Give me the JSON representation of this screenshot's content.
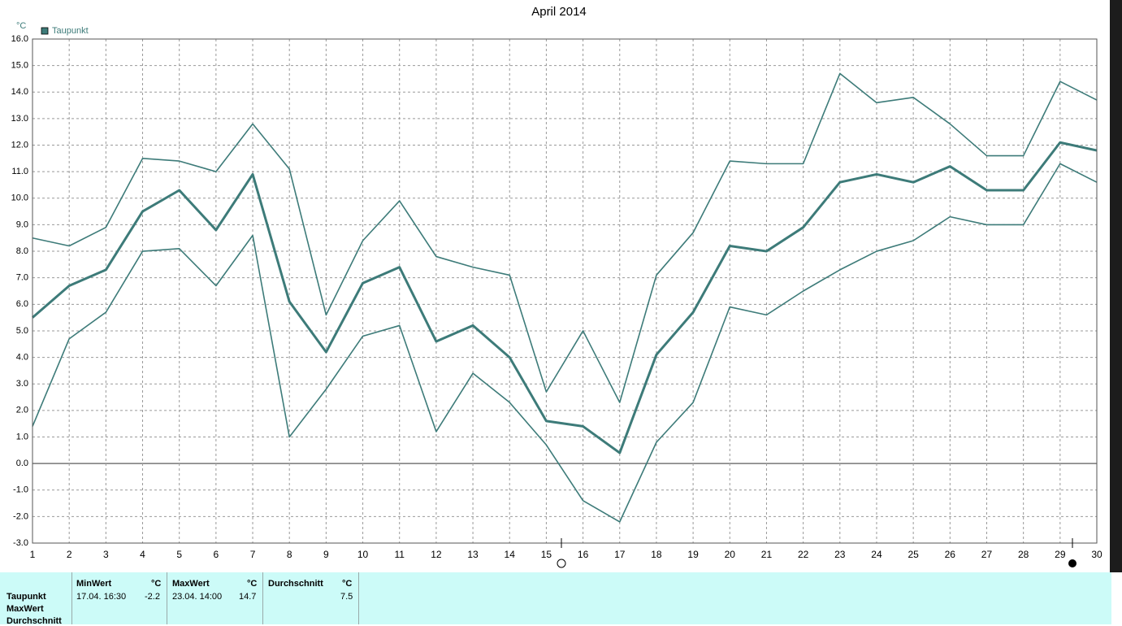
{
  "chart_data": {
    "type": "line",
    "title": "April 2014",
    "y_unit": "°C",
    "x": [
      1,
      2,
      3,
      4,
      5,
      6,
      7,
      8,
      9,
      10,
      11,
      12,
      13,
      14,
      15,
      16,
      17,
      18,
      19,
      20,
      21,
      22,
      23,
      24,
      25,
      26,
      27,
      28,
      29,
      30
    ],
    "series": [
      {
        "name": "Taupunkt",
        "color": "#3d7b79",
        "width": 3,
        "values": [
          5.5,
          6.7,
          7.3,
          9.5,
          10.3,
          8.8,
          10.9,
          6.1,
          4.2,
          6.8,
          7.4,
          4.6,
          5.2,
          4.0,
          1.6,
          1.4,
          0.4,
          4.1,
          5.7,
          8.2,
          8.0,
          8.9,
          10.6,
          10.9,
          10.6,
          11.2,
          10.3,
          10.3,
          12.1,
          11.8
        ]
      },
      {
        "color": "#3d7b79",
        "width": 1.6,
        "values": [
          8.5,
          8.2,
          8.9,
          11.5,
          11.4,
          11.0,
          12.8,
          11.1,
          5.6,
          8.4,
          9.9,
          7.8,
          7.4,
          7.1,
          2.7,
          5.0,
          2.3,
          7.1,
          8.7,
          11.4,
          11.3,
          11.3,
          14.7,
          13.6,
          13.8,
          12.8,
          11.6,
          11.6,
          14.4,
          13.7
        ]
      },
      {
        "color": "#3d7b79",
        "width": 1.6,
        "values": [
          1.4,
          4.7,
          5.7,
          8.0,
          8.1,
          6.7,
          8.6,
          1.0,
          2.8,
          4.8,
          5.2,
          1.2,
          3.4,
          2.3,
          0.7,
          -1.4,
          -2.2,
          0.8,
          2.3,
          5.9,
          5.6,
          6.5,
          7.3,
          8.0,
          8.4,
          9.3,
          9.0,
          9.0,
          11.3,
          10.6
        ]
      }
    ],
    "xlim": [
      1,
      30
    ],
    "xticks": [
      1,
      2,
      3,
      4,
      5,
      6,
      7,
      8,
      9,
      10,
      11,
      12,
      13,
      14,
      15,
      16,
      17,
      18,
      19,
      20,
      21,
      22,
      23,
      24,
      25,
      26,
      27,
      28,
      29,
      30
    ],
    "ylim": [
      -3,
      16
    ],
    "yticks": [
      {
        "value": -3,
        "label": "-3.0"
      },
      {
        "value": -2,
        "label": "-2.0"
      },
      {
        "value": -1,
        "label": "-1.0"
      },
      {
        "value": 0,
        "label": "0.0"
      },
      {
        "value": 1,
        "label": "1.0"
      },
      {
        "value": 2,
        "label": "2.0"
      },
      {
        "value": 3,
        "label": "3.0"
      },
      {
        "value": 4,
        "label": "4.0"
      },
      {
        "value": 5,
        "label": "5.0"
      },
      {
        "value": 6,
        "label": "6.0"
      },
      {
        "value": 7,
        "label": "7.0"
      },
      {
        "value": 8,
        "label": "8.0"
      },
      {
        "value": 9,
        "label": "9.0"
      },
      {
        "value": 10,
        "label": "10.0"
      },
      {
        "value": 11,
        "label": "11.0"
      },
      {
        "value": 12,
        "label": "12.0"
      },
      {
        "value": 13,
        "label": "13.0"
      },
      {
        "value": 14,
        "label": "14.0"
      },
      {
        "value": 15,
        "label": "15.0"
      },
      {
        "value": 16,
        "label": "16.0"
      }
    ],
    "grid": true,
    "legend": "top-left"
  },
  "table": {
    "row_labels": [
      "Taupunkt",
      "MaxWert",
      "Durchschnitt"
    ],
    "columns": [
      {
        "header": "MinWert",
        "unit": "°C",
        "when": "17.04.  16:30",
        "value": -2.2
      },
      {
        "header": "MaxWert",
        "unit": "°C",
        "when": "23.04.  14:00",
        "value": 14.7
      },
      {
        "header": "Durchschnitt",
        "unit": "°C",
        "value": 7.5
      }
    ]
  }
}
